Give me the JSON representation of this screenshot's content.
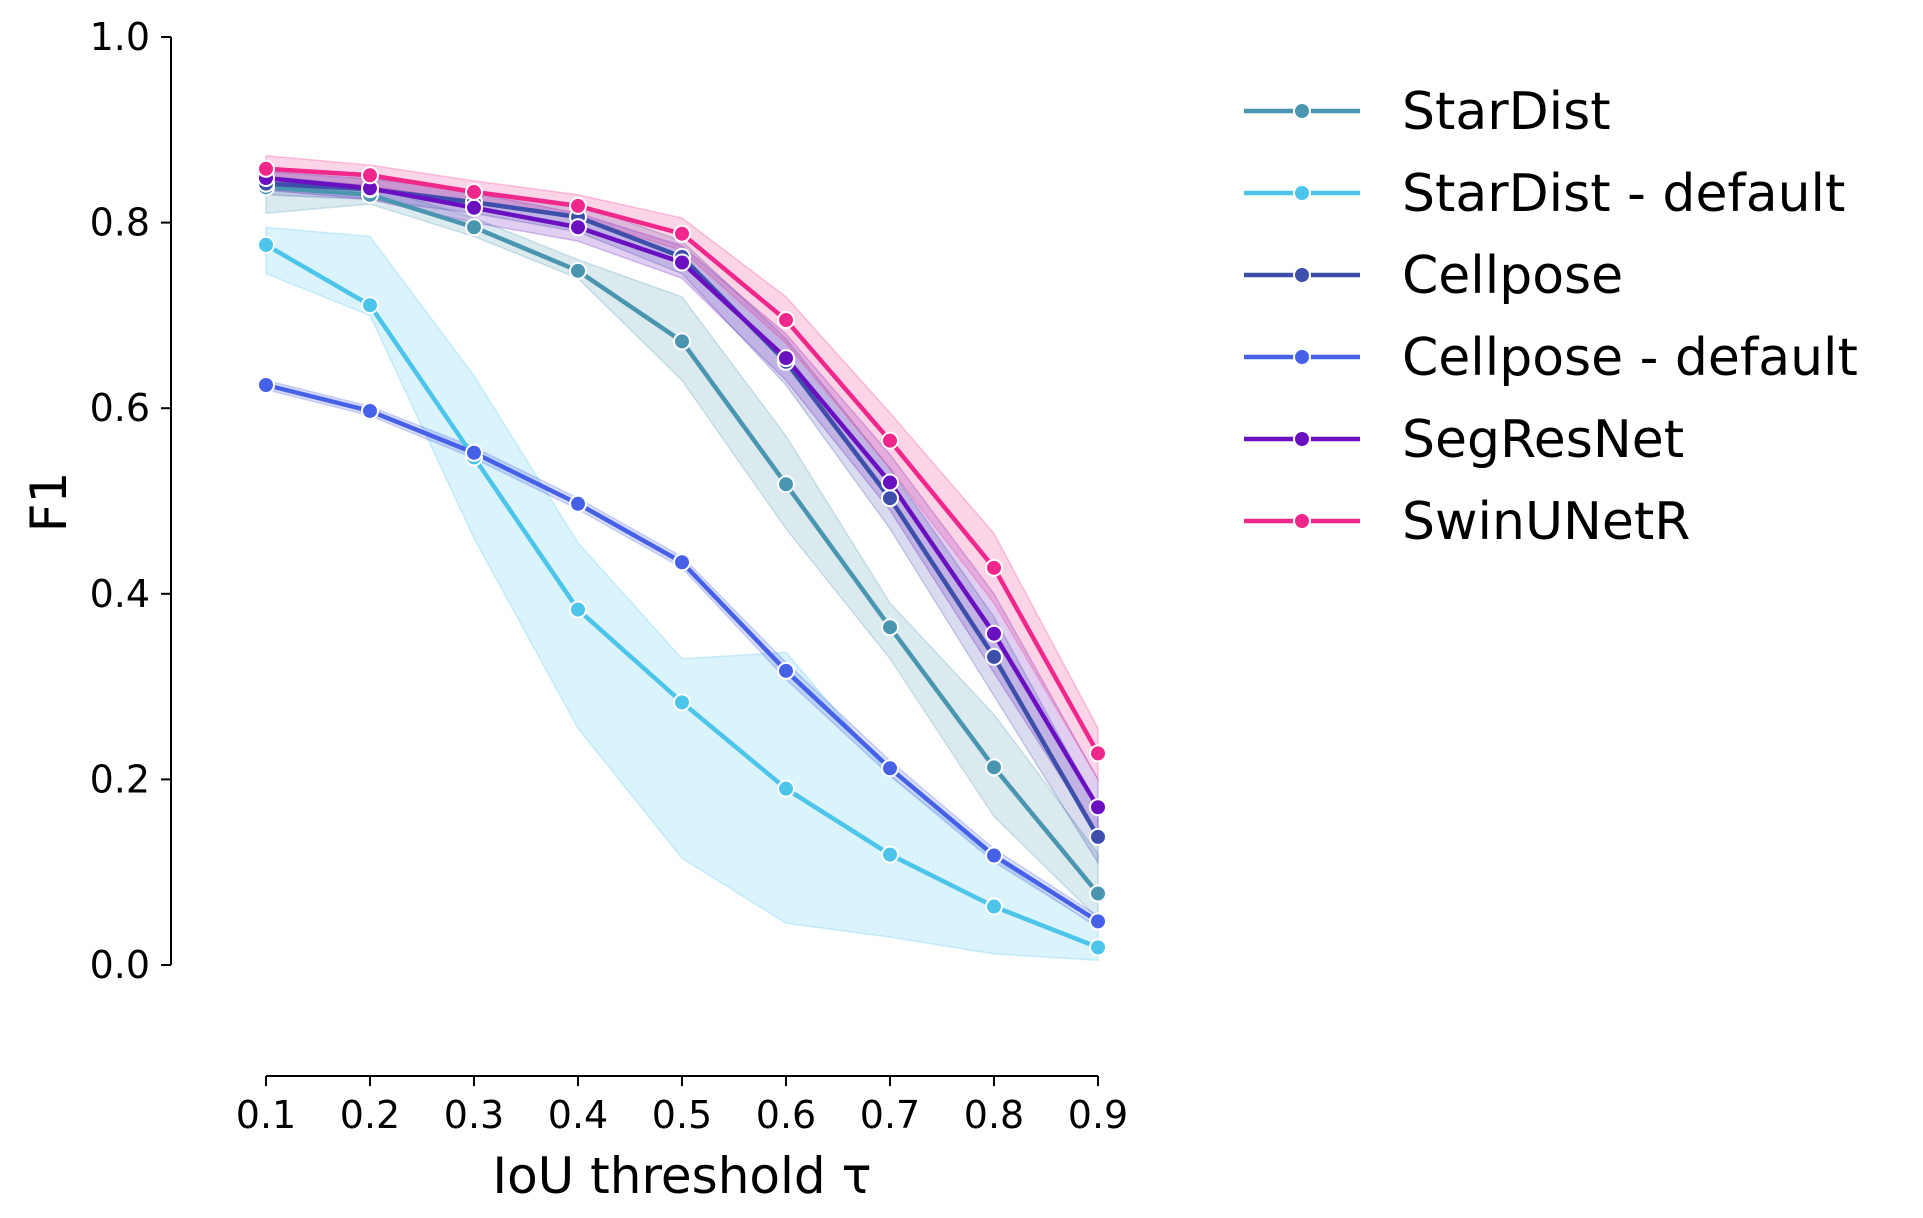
{
  "chart_data": {
    "type": "line",
    "xlabel": "IoU threshold τ",
    "ylabel": "F1",
    "x": [
      0.1,
      0.2,
      0.3,
      0.4,
      0.5,
      0.6,
      0.7,
      0.8,
      0.9
    ],
    "xticks": [
      "0.1",
      "0.2",
      "0.3",
      "0.4",
      "0.5",
      "0.6",
      "0.7",
      "0.8",
      "0.9"
    ],
    "yticks": [
      "0.0",
      "0.2",
      "0.4",
      "0.6",
      "0.8",
      "1.0"
    ],
    "ylim": [
      0.0,
      1.0
    ],
    "grid": false,
    "legend_position": "right",
    "series": [
      {
        "name": "StarDist",
        "color": "#4a96b0",
        "values": [
          0.838,
          0.83,
          0.795,
          0.748,
          0.672,
          0.518,
          0.364,
          0.213,
          0.077
        ],
        "lower": [
          0.81,
          0.82,
          0.785,
          0.74,
          0.63,
          0.47,
          0.33,
          0.16,
          0.05
        ],
        "upper": [
          0.85,
          0.84,
          0.805,
          0.76,
          0.72,
          0.57,
          0.39,
          0.27,
          0.12
        ]
      },
      {
        "name": "StarDist - default",
        "color": "#4dc5eb",
        "values": [
          0.776,
          0.711,
          0.547,
          0.383,
          0.283,
          0.19,
          0.119,
          0.063,
          0.019
        ],
        "lower": [
          0.745,
          0.7,
          0.46,
          0.255,
          0.115,
          0.045,
          0.03,
          0.012,
          0.005
        ],
        "upper": [
          0.795,
          0.785,
          0.635,
          0.455,
          0.33,
          0.337,
          0.205,
          0.115,
          0.04
        ]
      },
      {
        "name": "Cellpose",
        "color": "#3d4faa",
        "values": [
          0.842,
          0.836,
          0.822,
          0.806,
          0.763,
          0.65,
          0.503,
          0.332,
          0.138
        ],
        "lower": [
          0.83,
          0.825,
          0.81,
          0.79,
          0.745,
          0.625,
          0.47,
          0.29,
          0.11
        ],
        "upper": [
          0.855,
          0.847,
          0.835,
          0.82,
          0.78,
          0.675,
          0.535,
          0.375,
          0.17
        ]
      },
      {
        "name": "Cellpose - default",
        "color": "#4760e8",
        "values": [
          0.625,
          0.597,
          0.552,
          0.497,
          0.434,
          0.317,
          0.212,
          0.118,
          0.047
        ],
        "lower": [
          0.62,
          0.592,
          0.546,
          0.491,
          0.428,
          0.308,
          0.204,
          0.111,
          0.041
        ],
        "upper": [
          0.63,
          0.602,
          0.558,
          0.503,
          0.44,
          0.326,
          0.22,
          0.125,
          0.053
        ]
      },
      {
        "name": "SegResNet",
        "color": "#6a10c0",
        "values": [
          0.848,
          0.837,
          0.816,
          0.795,
          0.757,
          0.654,
          0.52,
          0.357,
          0.17
        ],
        "lower": [
          0.835,
          0.825,
          0.8,
          0.78,
          0.74,
          0.63,
          0.49,
          0.315,
          0.14
        ],
        "upper": [
          0.86,
          0.849,
          0.832,
          0.81,
          0.775,
          0.68,
          0.55,
          0.4,
          0.2
        ]
      },
      {
        "name": "SwinUNetR",
        "color": "#f0288c",
        "values": [
          0.858,
          0.851,
          0.833,
          0.818,
          0.788,
          0.695,
          0.565,
          0.428,
          0.228
        ],
        "lower": [
          0.845,
          0.84,
          0.822,
          0.805,
          0.77,
          0.67,
          0.535,
          0.39,
          0.2
        ],
        "upper": [
          0.872,
          0.862,
          0.845,
          0.83,
          0.805,
          0.72,
          0.595,
          0.465,
          0.255
        ]
      }
    ]
  }
}
